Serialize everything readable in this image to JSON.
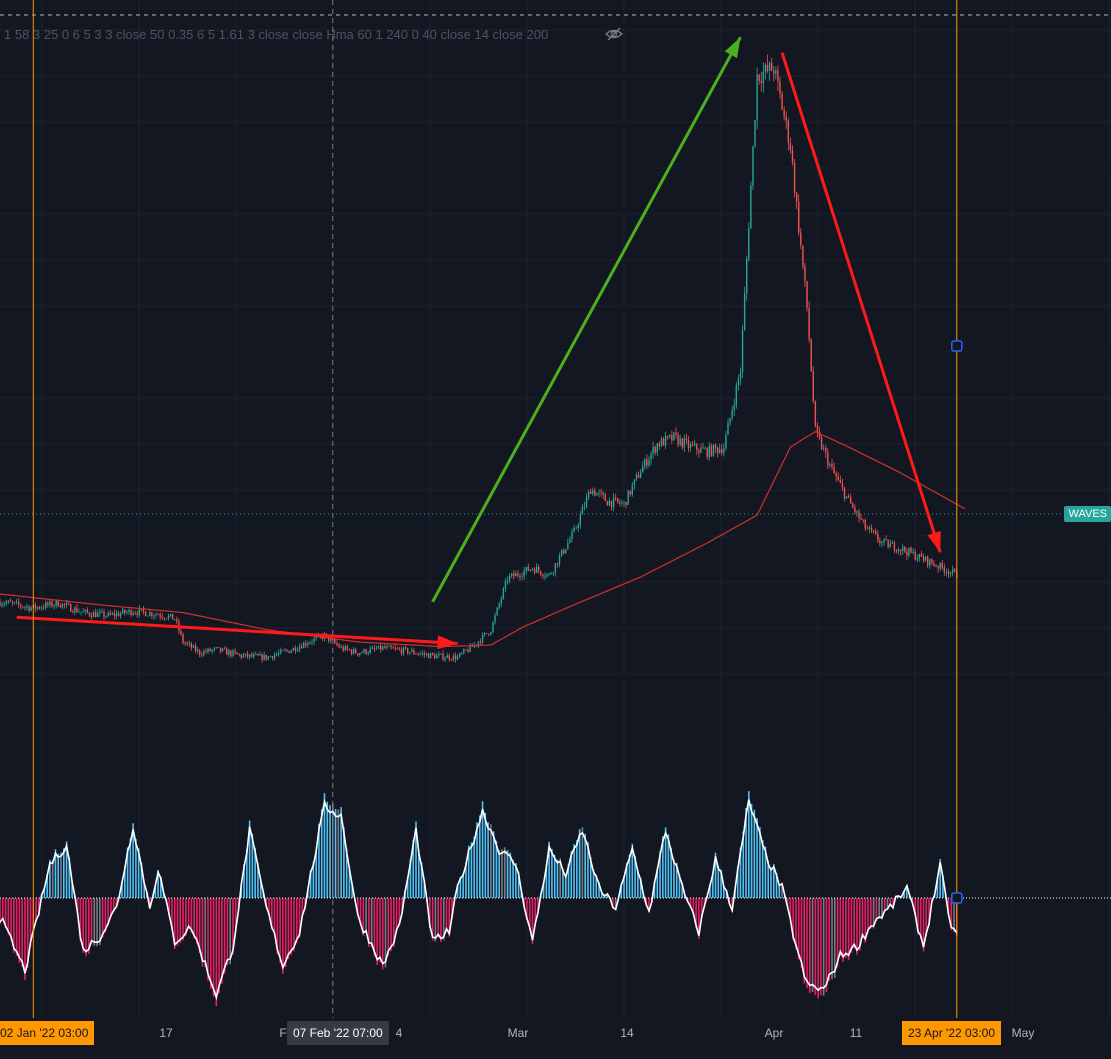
{
  "indicator_legend": "1 58 3 25 0 6 5 3 3 close 50 0.35 6 5 1.61 3 close close Hma 60 1 240 0 40 close 14 close 200",
  "price_label": "WAVES",
  "time_axis": {
    "start_badge": "02 Jan '22  03:00",
    "crosshair_badge": "07 Feb '22  07:00",
    "end_badge": "23 Apr '22  03:00",
    "ticks": [
      "17",
      "F",
      "4",
      "Mar",
      "14",
      "Apr",
      "11",
      "May"
    ]
  },
  "colors": {
    "background": "#131722",
    "up": "#26a69a",
    "down": "#ef5350",
    "ma": "#d32f2f",
    "osc_up": "#4fc3f7",
    "osc_down": "#e91e63",
    "osc_neutral": "#787b86",
    "marker": "#ff9800",
    "trend_green": "#4caf1f",
    "trend_red": "#ff1a1a"
  },
  "chart_data": {
    "type": "candlestick",
    "symbol": "WAVES",
    "x_range": [
      "2021-12-29",
      "2022-05-03"
    ],
    "price_series": {
      "name": "close",
      "points": [
        [
          "2021-12-29",
          21.0
        ],
        [
          "2022-01-02",
          20.6
        ],
        [
          "2022-01-05",
          20.9
        ],
        [
          "2022-01-08",
          20.3
        ],
        [
          "2022-01-11",
          20.1
        ],
        [
          "2022-01-14",
          20.4
        ],
        [
          "2022-01-17",
          20.2
        ],
        [
          "2022-01-19",
          19.9
        ],
        [
          "2022-01-20",
          18.4
        ],
        [
          "2022-01-22",
          17.7
        ],
        [
          "2022-01-24",
          17.9
        ],
        [
          "2022-01-27",
          17.5
        ],
        [
          "2022-01-30",
          17.4
        ],
        [
          "2022-02-02",
          17.9
        ],
        [
          "2022-02-04",
          18.4
        ],
        [
          "2022-02-06",
          18.8
        ],
        [
          "2022-02-08",
          18.0
        ],
        [
          "2022-02-10",
          17.7
        ],
        [
          "2022-02-13",
          18.0
        ],
        [
          "2022-02-16",
          17.8
        ],
        [
          "2022-02-19",
          17.5
        ],
        [
          "2022-02-22",
          17.4
        ],
        [
          "2022-02-24",
          18.2
        ],
        [
          "2022-02-26",
          19.2
        ],
        [
          "2022-02-28",
          22.5
        ],
        [
          "2022-03-03",
          23.2
        ],
        [
          "2022-03-05",
          22.7
        ],
        [
          "2022-03-08",
          25.5
        ],
        [
          "2022-03-10",
          28.3
        ],
        [
          "2022-03-12",
          27.5
        ],
        [
          "2022-03-14",
          27.3
        ],
        [
          "2022-03-16",
          29.5
        ],
        [
          "2022-03-18",
          31.2
        ],
        [
          "2022-03-20",
          31.6
        ],
        [
          "2022-03-22",
          31.0
        ],
        [
          "2022-03-24",
          30.7
        ],
        [
          "2022-03-26",
          31.0
        ],
        [
          "2022-03-28",
          36.0
        ],
        [
          "2022-03-30",
          55.0
        ],
        [
          "2022-04-01",
          55.5
        ],
        [
          "2022-04-03",
          50.5
        ],
        [
          "2022-04-05",
          40.0
        ],
        [
          "2022-04-06",
          32.0
        ],
        [
          "2022-04-08",
          29.5
        ],
        [
          "2022-04-10",
          27.5
        ],
        [
          "2022-04-12",
          25.8
        ],
        [
          "2022-04-14",
          24.8
        ],
        [
          "2022-04-16",
          24.5
        ],
        [
          "2022-04-18",
          24.0
        ],
        [
          "2022-04-20",
          23.5
        ],
        [
          "2022-04-22",
          23.0
        ],
        [
          "2022-04-23",
          22.7
        ]
      ]
    },
    "moving_average": {
      "name": "200",
      "points": [
        [
          "2021-12-29",
          21.5
        ],
        [
          "2022-01-10",
          20.8
        ],
        [
          "2022-01-20",
          20.3
        ],
        [
          "2022-01-30",
          19.2
        ],
        [
          "2022-02-10",
          18.4
        ],
        [
          "2022-02-20",
          18.1
        ],
        [
          "2022-02-26",
          18.2
        ],
        [
          "2022-03-02",
          19.4
        ],
        [
          "2022-03-08",
          20.8
        ],
        [
          "2022-03-16",
          22.6
        ],
        [
          "2022-03-24",
          24.8
        ],
        [
          "2022-03-30",
          26.6
        ],
        [
          "2022-04-03",
          31.0
        ],
        [
          "2022-04-06",
          32.0
        ],
        [
          "2022-04-10",
          31.0
        ],
        [
          "2022-04-16",
          29.4
        ],
        [
          "2022-04-22",
          27.6
        ],
        [
          "2022-04-24",
          27.0
        ]
      ]
    },
    "oscillator": {
      "x_range": [
        "2021-12-29",
        "2022-04-23"
      ],
      "points": [
        [
          "2021-12-29",
          -0.2
        ],
        [
          "2022-01-01",
          -0.75
        ],
        [
          "2022-01-04",
          0.35
        ],
        [
          "2022-01-06",
          0.55
        ],
        [
          "2022-01-08",
          -0.55
        ],
        [
          "2022-01-10",
          -0.4
        ],
        [
          "2022-01-12",
          -0.1
        ],
        [
          "2022-01-14",
          0.75
        ],
        [
          "2022-01-16",
          -0.1
        ],
        [
          "2022-01-17",
          0.3
        ],
        [
          "2022-01-19",
          -0.45
        ],
        [
          "2022-01-21",
          -0.3
        ],
        [
          "2022-01-24",
          -1.0
        ],
        [
          "2022-01-26",
          -0.5
        ],
        [
          "2022-01-28",
          0.7
        ],
        [
          "2022-01-30",
          -0.1
        ],
        [
          "2022-02-01",
          -0.7
        ],
        [
          "2022-02-03",
          -0.35
        ],
        [
          "2022-02-06",
          0.95
        ],
        [
          "2022-02-08",
          0.85
        ],
        [
          "2022-02-10",
          -0.2
        ],
        [
          "2022-02-13",
          -0.7
        ],
        [
          "2022-02-15",
          -0.3
        ],
        [
          "2022-02-17",
          0.7
        ],
        [
          "2022-02-19",
          -0.45
        ],
        [
          "2022-02-21",
          -0.35
        ],
        [
          "2022-02-22",
          0.1
        ],
        [
          "2022-02-25",
          0.9
        ],
        [
          "2022-02-27",
          0.5
        ],
        [
          "2022-03-01",
          0.35
        ],
        [
          "2022-03-03",
          -0.45
        ],
        [
          "2022-03-05",
          0.5
        ],
        [
          "2022-03-07",
          0.25
        ],
        [
          "2022-03-09",
          0.7
        ],
        [
          "2022-03-11",
          0.1
        ],
        [
          "2022-03-13",
          -0.1
        ],
        [
          "2022-03-15",
          0.5
        ],
        [
          "2022-03-17",
          -0.15
        ],
        [
          "2022-03-19",
          0.7
        ],
        [
          "2022-03-21",
          0.1
        ],
        [
          "2022-03-23",
          -0.35
        ],
        [
          "2022-03-25",
          0.4
        ],
        [
          "2022-03-27",
          -0.1
        ],
        [
          "2022-03-29",
          1.0
        ],
        [
          "2022-03-31",
          0.45
        ],
        [
          "2022-04-02",
          0.1
        ],
        [
          "2022-04-04",
          -0.6
        ],
        [
          "2022-04-05",
          -0.9
        ],
        [
          "2022-04-07",
          -0.95
        ],
        [
          "2022-04-09",
          -0.6
        ],
        [
          "2022-04-11",
          -0.5
        ],
        [
          "2022-04-13",
          -0.25
        ],
        [
          "2022-04-15",
          -0.1
        ],
        [
          "2022-04-17",
          0.1
        ],
        [
          "2022-04-19",
          -0.5
        ],
        [
          "2022-04-21",
          0.35
        ],
        [
          "2022-04-22",
          -0.2
        ],
        [
          "2022-04-23",
          -0.4
        ]
      ]
    },
    "trend_arrows": [
      {
        "color": "red",
        "from": [
          "2021-12-31",
          20.0
        ],
        "to": [
          "2022-02-22",
          18.3
        ]
      },
      {
        "color": "green",
        "from": [
          "2022-02-19",
          21.0
        ],
        "to": [
          "2022-03-28",
          57.5
        ]
      },
      {
        "color": "red",
        "from": [
          "2022-04-02",
          56.5
        ],
        "to": [
          "2022-04-21",
          24.2
        ]
      }
    ],
    "markers": {
      "start": "2022-01-02",
      "crosshair": "2022-02-07",
      "end": "2022-04-23"
    }
  }
}
